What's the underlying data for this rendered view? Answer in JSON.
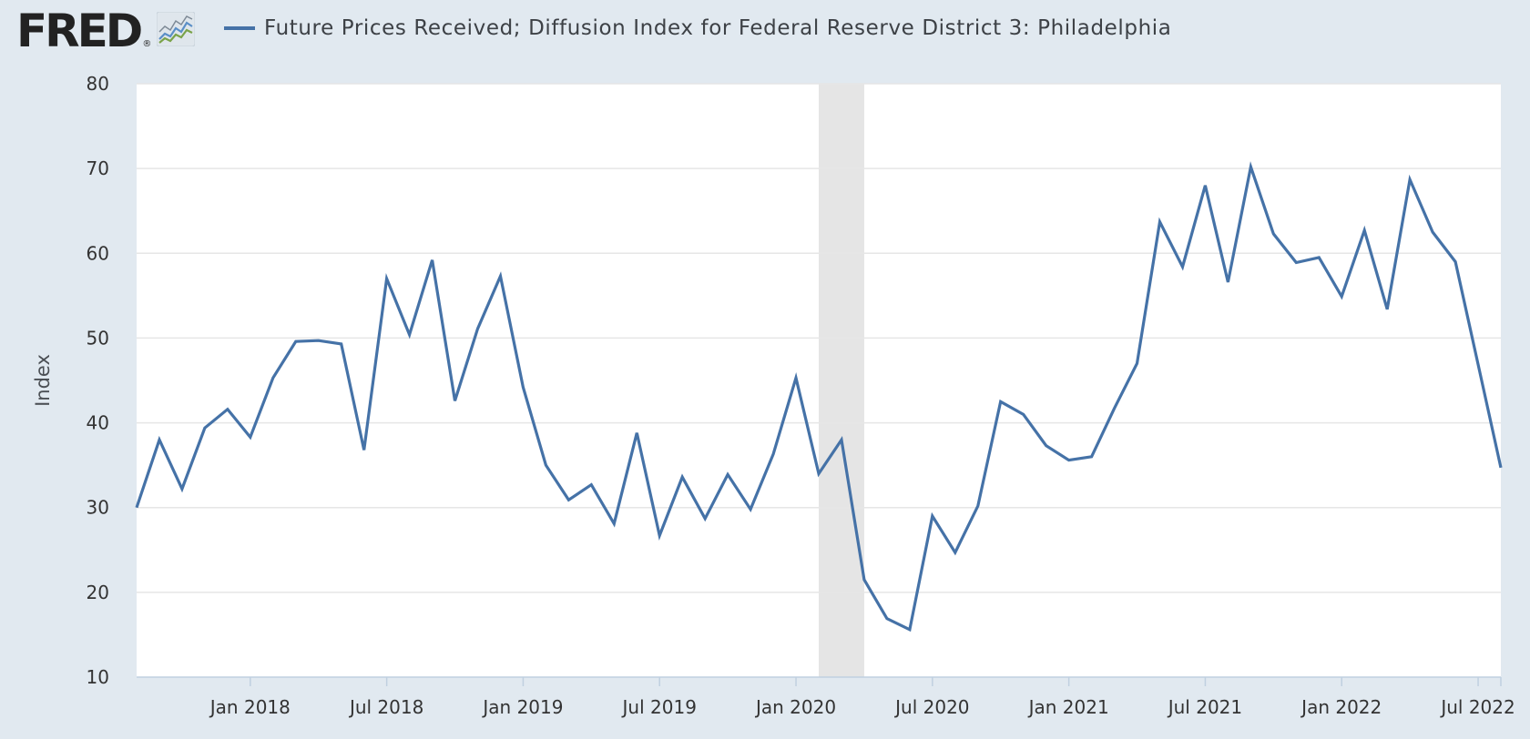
{
  "header": {
    "logo_text": "FRED",
    "logo_mark": "®",
    "logo_icon": "line-graph-icon"
  },
  "chart_data": {
    "type": "line",
    "title": "Future Prices Received; Diffusion Index for Federal Reserve District 3: Philadelphia",
    "xlabel": "",
    "ylabel": "Index",
    "ylim": [
      10,
      80
    ],
    "yticks": [
      10,
      20,
      30,
      40,
      50,
      60,
      70,
      80
    ],
    "xlim": [
      "2017-08",
      "2022-08"
    ],
    "xticks": [
      {
        "date": "2018-01",
        "label": "Jan 2018"
      },
      {
        "date": "2018-07",
        "label": "Jul 2018"
      },
      {
        "date": "2019-01",
        "label": "Jan 2019"
      },
      {
        "date": "2019-07",
        "label": "Jul 2019"
      },
      {
        "date": "2020-01",
        "label": "Jan 2020"
      },
      {
        "date": "2020-07",
        "label": "Jul 2020"
      },
      {
        "date": "2021-01",
        "label": "Jan 2021"
      },
      {
        "date": "2021-07",
        "label": "Jul 2021"
      },
      {
        "date": "2022-01",
        "label": "Jan 2022"
      },
      {
        "date": "2022-07",
        "label": "Jul 2022"
      }
    ],
    "grid": true,
    "shaded_regions": [
      {
        "start": "2020-02",
        "end": "2020-04"
      }
    ],
    "colors": {
      "series": "#4572a7",
      "recession": "#e5e5e5",
      "grid": "#e6e6e6",
      "plot_bg": "#ffffff",
      "page_bg": "#e1e9f0"
    },
    "series": [
      {
        "x": [
          "2017-08",
          "2017-09",
          "2017-10",
          "2017-11",
          "2017-12",
          "2018-01",
          "2018-02",
          "2018-03",
          "2018-04",
          "2018-05",
          "2018-06",
          "2018-07",
          "2018-08",
          "2018-09",
          "2018-10",
          "2018-11",
          "2018-12",
          "2019-01",
          "2019-02",
          "2019-03",
          "2019-04",
          "2019-05",
          "2019-06",
          "2019-07",
          "2019-08",
          "2019-09",
          "2019-10",
          "2019-11",
          "2019-12",
          "2020-01",
          "2020-02",
          "2020-03",
          "2020-04",
          "2020-05",
          "2020-06",
          "2020-07",
          "2020-08",
          "2020-09",
          "2020-10",
          "2020-11",
          "2020-12",
          "2021-01",
          "2021-02",
          "2021-03",
          "2021-04",
          "2021-05",
          "2021-06",
          "2021-07",
          "2021-08",
          "2021-09",
          "2021-10",
          "2021-11",
          "2021-12",
          "2022-01",
          "2022-02",
          "2022-03",
          "2022-04",
          "2022-05",
          "2022-06",
          "2022-07",
          "2022-08"
        ],
        "values": [
          30.0,
          38.0,
          32.2,
          39.4,
          41.6,
          38.3,
          45.3,
          49.6,
          49.7,
          49.3,
          36.8,
          57.0,
          50.4,
          59.2,
          42.6,
          51.1,
          57.3,
          44.2,
          35.0,
          30.9,
          32.7,
          28.1,
          38.8,
          26.7,
          33.6,
          28.7,
          33.9,
          29.8,
          36.3,
          45.3,
          34.0,
          38.0,
          21.5,
          16.9,
          15.6,
          29.0,
          24.7,
          30.2,
          42.5,
          41.0,
          37.3,
          35.6,
          36.0,
          41.7,
          47.0,
          63.7,
          58.4,
          68.0,
          56.6,
          70.2,
          62.3,
          58.9,
          59.5,
          54.9,
          62.7,
          53.4,
          68.7,
          62.5,
          59.0,
          46.9,
          34.7
        ]
      }
    ]
  }
}
